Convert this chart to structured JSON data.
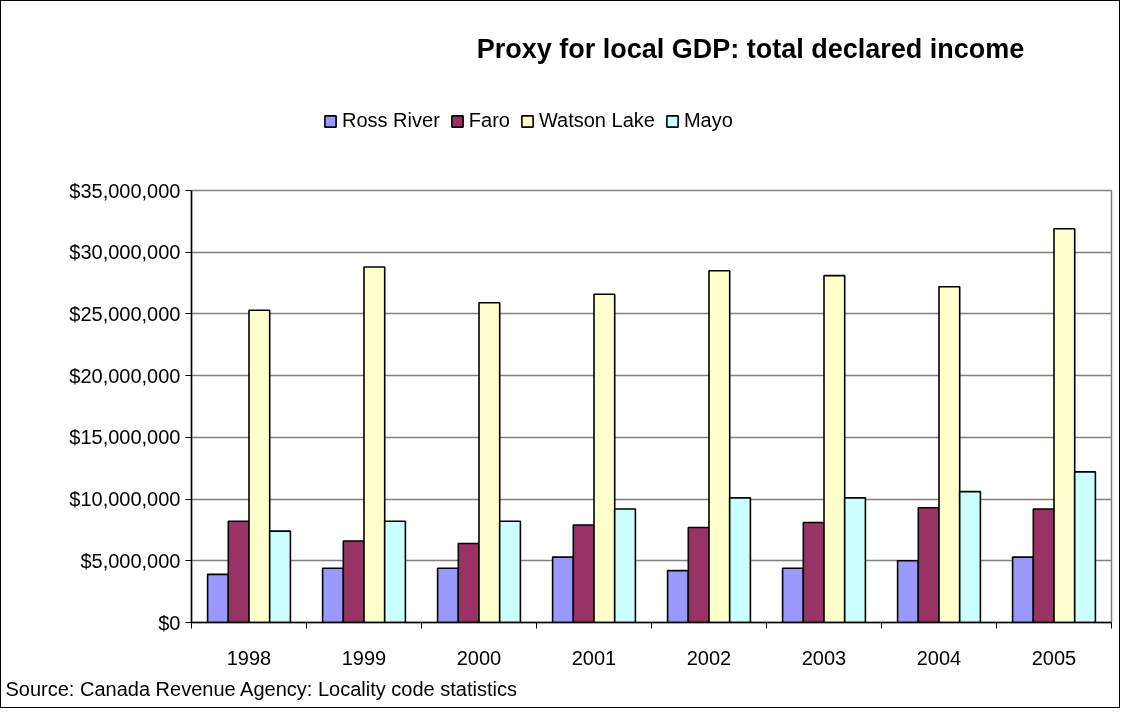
{
  "chart_data": {
    "type": "bar",
    "title": "Proxy for local GDP: total declared income",
    "categories": [
      "1998",
      "1999",
      "2000",
      "2001",
      "2002",
      "2003",
      "2004",
      "2005"
    ],
    "series": [
      {
        "name": "Ross River",
        "color": "#9999ff",
        "values": [
          3900000,
          4400000,
          4400000,
          5300000,
          4200000,
          4400000,
          5000000,
          5300000
        ]
      },
      {
        "name": "Faro",
        "color": "#993366",
        "values": [
          8200000,
          6600000,
          6400000,
          7900000,
          7700000,
          8100000,
          9300000,
          9200000
        ]
      },
      {
        "name": "Watson Lake",
        "color": "#ffffcc",
        "values": [
          25300000,
          28800000,
          25900000,
          26600000,
          28500000,
          28100000,
          27200000,
          31900000
        ]
      },
      {
        "name": "Mayo",
        "color": "#ccffff",
        "values": [
          7400000,
          8200000,
          8200000,
          9200000,
          10100000,
          10100000,
          10600000,
          12200000
        ]
      }
    ],
    "ylim": [
      0,
      35000000
    ],
    "yticks": [
      {
        "value": 0,
        "label": "$0"
      },
      {
        "value": 5000000,
        "label": "$5,000,000"
      },
      {
        "value": 10000000,
        "label": "$10,000,000"
      },
      {
        "value": 15000000,
        "label": "$15,000,000"
      },
      {
        "value": 20000000,
        "label": "$20,000,000"
      },
      {
        "value": 25000000,
        "label": "$25,000,000"
      },
      {
        "value": 30000000,
        "label": "$30,000,000"
      },
      {
        "value": 35000000,
        "label": "$35,000,000"
      }
    ],
    "grid": "y",
    "legend": "top",
    "annotations": [
      "Source: Canada Revenue Agency: Locality code statistics"
    ]
  }
}
